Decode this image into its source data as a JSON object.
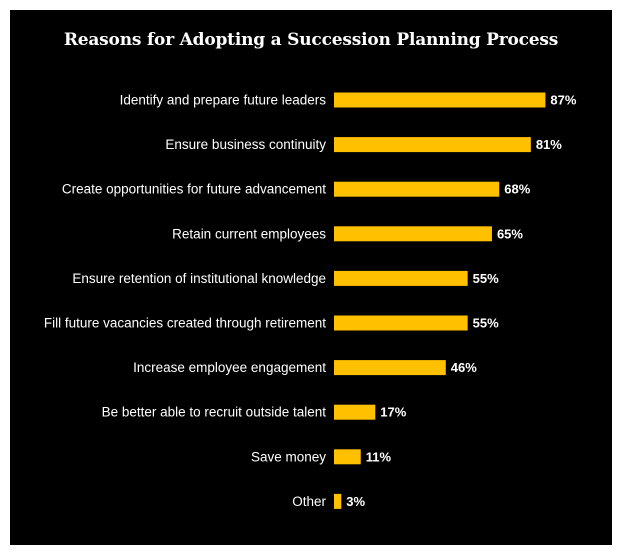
{
  "colors": {
    "background": "#000000",
    "bar": "#FFC000",
    "text": "#FFFFFF",
    "outer": "#FFFFFF"
  },
  "chart_data": {
    "type": "bar",
    "orientation": "horizontal",
    "title": "Reasons for Adopting a Succession Planning Process",
    "xlabel": "",
    "ylabel": "",
    "xlim": [
      0,
      100
    ],
    "grid": false,
    "legend": "none",
    "value_suffix": "%",
    "categories": [
      "Identify and prepare future leaders",
      "Ensure business continuity",
      "Create opportunities for future advancement",
      "Retain current employees",
      "Ensure retention of institutional knowledge",
      "Fill future vacancies created through retirement",
      "Increase employee engagement",
      "Be better able to recruit outside talent",
      "Save money",
      "Other"
    ],
    "values": [
      87,
      81,
      68,
      65,
      55,
      55,
      46,
      17,
      11,
      3
    ],
    "value_labels": [
      "87%",
      "81%",
      "68%",
      "65%",
      "55%",
      "55%",
      "46%",
      "17%",
      "11%",
      "3%"
    ]
  }
}
